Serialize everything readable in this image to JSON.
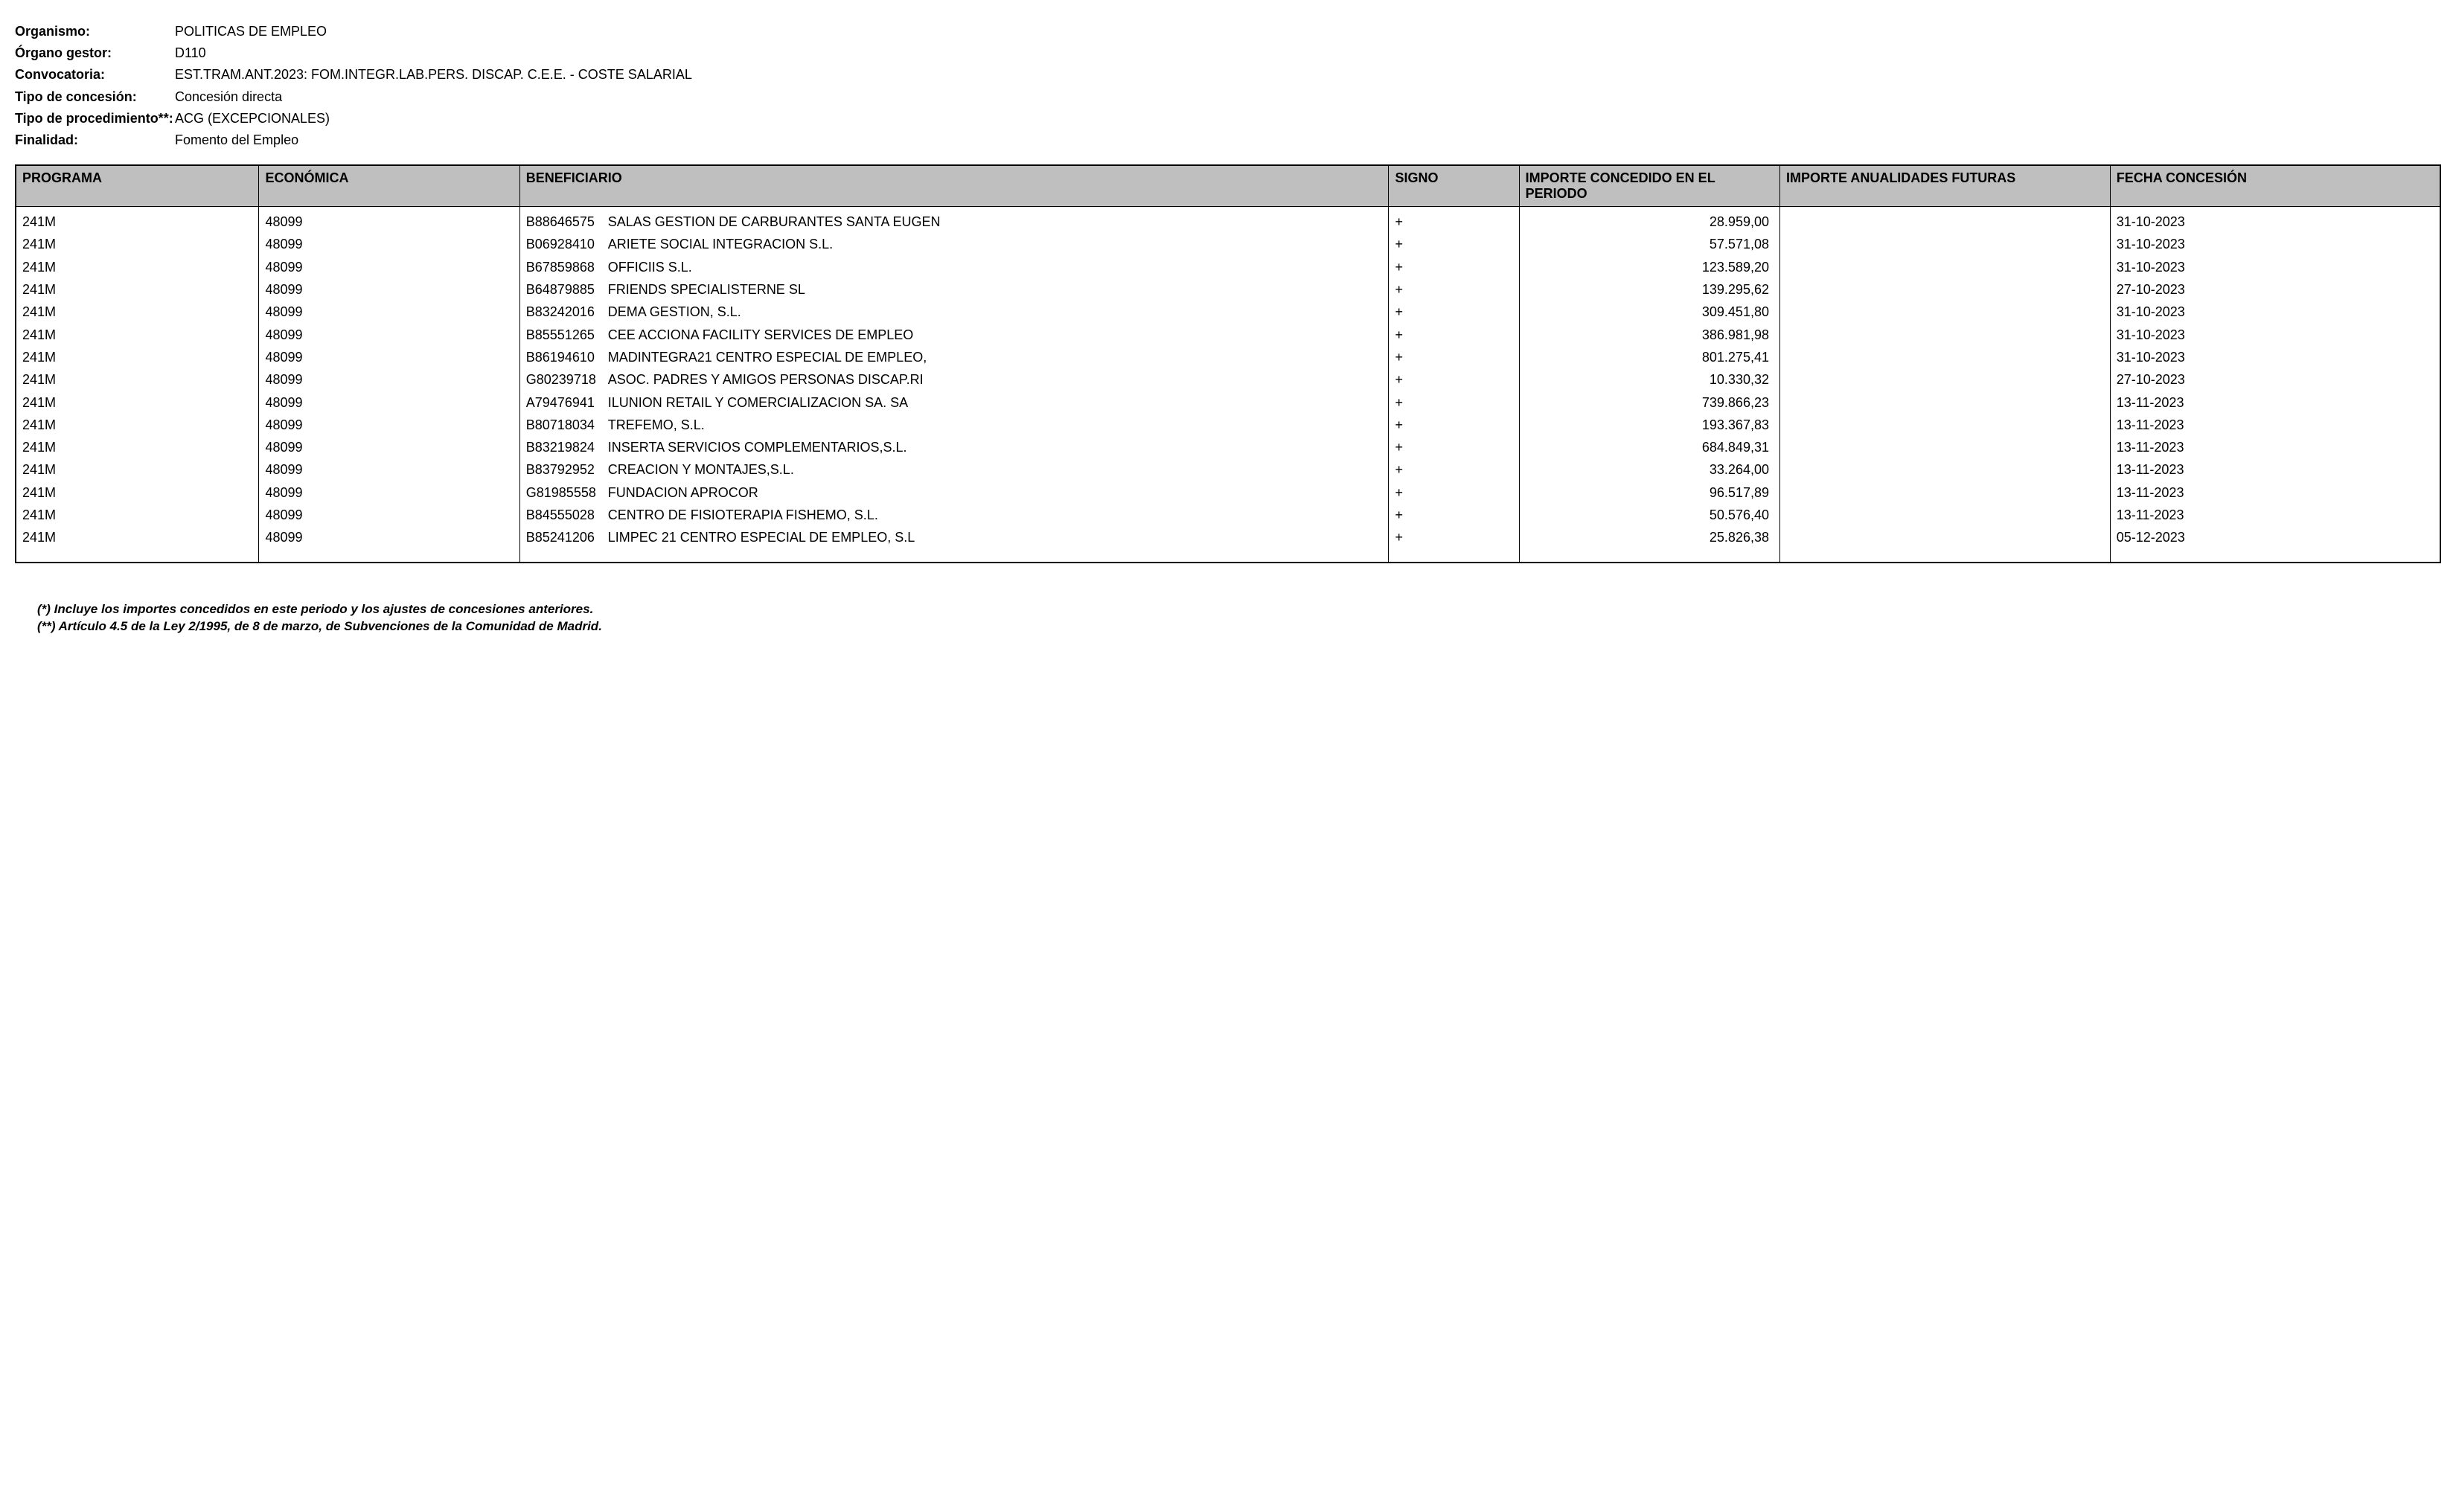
{
  "header": {
    "organismo_label": "Organismo:",
    "organismo_value": "POLITICAS DE EMPLEO",
    "organo_gestor_label": "Órgano gestor:",
    "organo_gestor_value": "D110",
    "convocatoria_label": "Convocatoria:",
    "convocatoria_value": "EST.TRAM.ANT.2023: FOM.INTEGR.LAB.PERS. DISCAP. C.E.E. - COSTE SALARIAL",
    "tipo_concesion_label": "Tipo de concesión:",
    "tipo_concesion_value": "Concesión directa",
    "tipo_procedimiento_label": "Tipo de procedimiento**:",
    "tipo_procedimiento_value": "ACG (EXCEPCIONALES)",
    "finalidad_label": "Finalidad:",
    "finalidad_value": "Fomento del Empleo"
  },
  "table": {
    "columns": {
      "programa": "PROGRAMA",
      "economica": "ECONÓMICA",
      "beneficiario": "BENEFICIARIO",
      "signo": "SIGNO",
      "importe_concedido": "IMPORTE CONCEDIDO EN EL PERIODO",
      "importe_anualidades": "IMPORTE ANUALIDADES FUTURAS",
      "fecha": "FECHA CONCESIÓN"
    },
    "rows": [
      {
        "programa": "241M",
        "economica": "48099",
        "cif": "B88646575",
        "ben": "SALAS GESTION DE CARBURANTES SANTA EUGEN",
        "signo": "+",
        "imp1": "28.959,00",
        "imp2": "",
        "fecha": "31-10-2023"
      },
      {
        "programa": "241M",
        "economica": "48099",
        "cif": "B06928410",
        "ben": "ARIETE SOCIAL INTEGRACION S.L.",
        "signo": "+",
        "imp1": "57.571,08",
        "imp2": "",
        "fecha": "31-10-2023"
      },
      {
        "programa": "241M",
        "economica": "48099",
        "cif": "B67859868",
        "ben": "OFFICIIS S.L.",
        "signo": "+",
        "imp1": "123.589,20",
        "imp2": "",
        "fecha": "31-10-2023"
      },
      {
        "programa": "241M",
        "economica": "48099",
        "cif": "B64879885",
        "ben": "FRIENDS SPECIALISTERNE SL",
        "signo": "+",
        "imp1": "139.295,62",
        "imp2": "",
        "fecha": "27-10-2023"
      },
      {
        "programa": "241M",
        "economica": "48099",
        "cif": "B83242016",
        "ben": "DEMA GESTION, S.L.",
        "signo": "+",
        "imp1": "309.451,80",
        "imp2": "",
        "fecha": "31-10-2023"
      },
      {
        "programa": "241M",
        "economica": "48099",
        "cif": "B85551265",
        "ben": "CEE ACCIONA FACILITY SERVICES DE EMPLEO",
        "signo": "+",
        "imp1": "386.981,98",
        "imp2": "",
        "fecha": "31-10-2023"
      },
      {
        "programa": "241M",
        "economica": "48099",
        "cif": "B86194610",
        "ben": "MADINTEGRA21 CENTRO ESPECIAL DE EMPLEO,",
        "signo": "+",
        "imp1": "801.275,41",
        "imp2": "",
        "fecha": "31-10-2023"
      },
      {
        "programa": "241M",
        "economica": "48099",
        "cif": "G80239718",
        "ben": "ASOC. PADRES Y AMIGOS PERSONAS DISCAP.RI",
        "signo": "+",
        "imp1": "10.330,32",
        "imp2": "",
        "fecha": "27-10-2023"
      },
      {
        "programa": "241M",
        "economica": "48099",
        "cif": "A79476941",
        "ben": "ILUNION RETAIL Y COMERCIALIZACION SA. SA",
        "signo": "+",
        "imp1": "739.866,23",
        "imp2": "",
        "fecha": "13-11-2023"
      },
      {
        "programa": "241M",
        "economica": "48099",
        "cif": "B80718034",
        "ben": "TREFEMO, S.L.",
        "signo": "+",
        "imp1": "193.367,83",
        "imp2": "",
        "fecha": "13-11-2023"
      },
      {
        "programa": "241M",
        "economica": "48099",
        "cif": "B83219824",
        "ben": "INSERTA SERVICIOS COMPLEMENTARIOS,S.L.",
        "signo": "+",
        "imp1": "684.849,31",
        "imp2": "",
        "fecha": "13-11-2023"
      },
      {
        "programa": "241M",
        "economica": "48099",
        "cif": "B83792952",
        "ben": "CREACION Y MONTAJES,S.L.",
        "signo": "+",
        "imp1": "33.264,00",
        "imp2": "",
        "fecha": "13-11-2023"
      },
      {
        "programa": "241M",
        "economica": "48099",
        "cif": "G81985558",
        "ben": "FUNDACION APROCOR",
        "signo": "+",
        "imp1": "96.517,89",
        "imp2": "",
        "fecha": "13-11-2023"
      },
      {
        "programa": "241M",
        "economica": "48099",
        "cif": "B84555028",
        "ben": "CENTRO DE FISIOTERAPIA FISHEMO, S.L.",
        "signo": "+",
        "imp1": "50.576,40",
        "imp2": "",
        "fecha": "13-11-2023"
      },
      {
        "programa": "241M",
        "economica": "48099",
        "cif": "B85241206",
        "ben": "LIMPEC 21 CENTRO ESPECIAL DE EMPLEO, S.L",
        "signo": "+",
        "imp1": "25.826,38",
        "imp2": "",
        "fecha": "05-12-2023"
      }
    ]
  },
  "footnotes": {
    "note1": "(*) Incluye los importes concedidos en este periodo y los ajustes de concesiones anteriores.",
    "note2": "(**) Artículo 4.5 de la Ley 2/1995, de 8 de marzo, de Subvenciones de la Comunidad de Madrid."
  }
}
